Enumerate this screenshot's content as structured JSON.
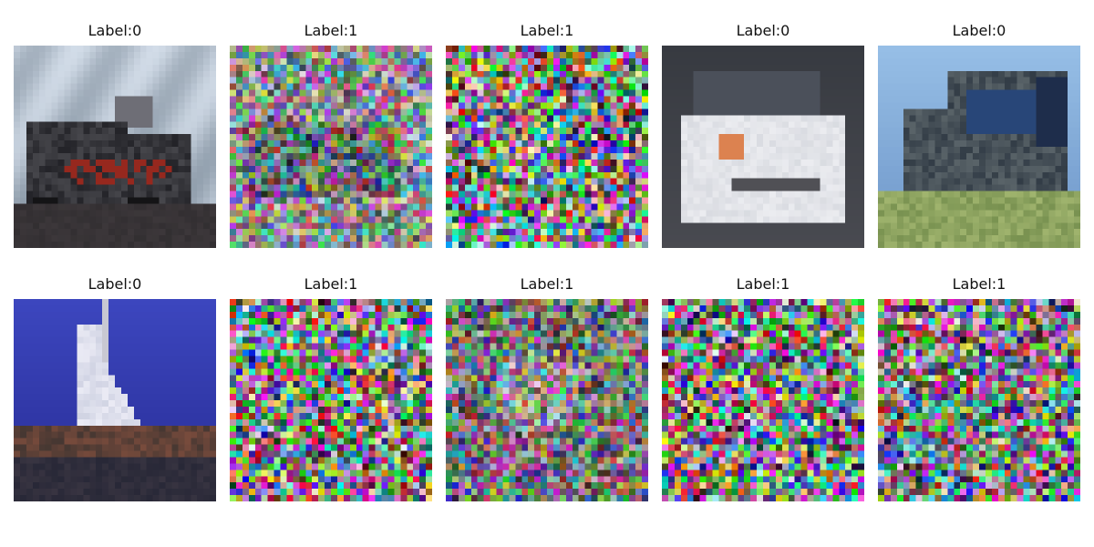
{
  "panels": [
    {
      "label": "Label:0",
      "scene": "truck-dark-cloudy-sky",
      "noise": 0.0
    },
    {
      "label": "Label:1",
      "scene": "dark-vehicle-washed",
      "noise": 0.7
    },
    {
      "label": "Label:1",
      "scene": "random-noise",
      "noise": 1.0
    },
    {
      "label": "Label:0",
      "scene": "white-car-closeup",
      "noise": 0.0
    },
    {
      "label": "Label:0",
      "scene": "blue-truck-grass",
      "noise": 0.0
    },
    {
      "label": "Label:0",
      "scene": "sailboat-blue-sky",
      "noise": 0.0
    },
    {
      "label": "Label:1",
      "scene": "random-noise",
      "noise": 1.0
    },
    {
      "label": "Label:1",
      "scene": "faint-light-blob",
      "noise": 0.75
    },
    {
      "label": "Label:1",
      "scene": "random-noise",
      "noise": 1.0
    },
    {
      "label": "Label:1",
      "scene": "dark-noise",
      "noise": 0.95
    }
  ]
}
